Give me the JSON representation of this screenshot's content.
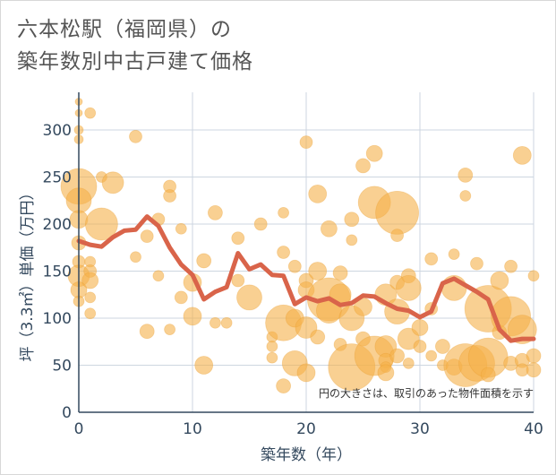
{
  "title": {
    "line1": "六本松駅（福岡県）の",
    "line2": "築年数別中古戸建て価格"
  },
  "chart_data": {
    "type": "scatter",
    "xlabel": "築年数（年）",
    "ylabel": "坪（3.3㎡）単価（万円）",
    "xlim": [
      0,
      40
    ],
    "ylim": [
      0,
      340
    ],
    "xticks": [
      0,
      10,
      20,
      30,
      40
    ],
    "yticks": [
      0,
      50,
      100,
      150,
      200,
      250,
      300
    ],
    "grid": true,
    "note": "円の大きさは、取引のあった物件面積を示す",
    "colors": {
      "bubble": "#f5b04a",
      "line": "#d9644a",
      "grid": "#cdd6e0",
      "axis": "#34495e"
    },
    "line": {
      "x": [
        0,
        1,
        2,
        3,
        4,
        5,
        6,
        7,
        8,
        9,
        10,
        11,
        12,
        13,
        14,
        15,
        16,
        17,
        18,
        19,
        20,
        21,
        22,
        23,
        24,
        25,
        26,
        27,
        28,
        29,
        30,
        31,
        32,
        33,
        34,
        35,
        36,
        37,
        38,
        39,
        40
      ],
      "y": [
        182,
        178,
        176,
        186,
        193,
        194,
        208,
        198,
        175,
        157,
        146,
        120,
        128,
        133,
        169,
        152,
        157,
        146,
        145,
        115,
        122,
        118,
        121,
        114,
        116,
        124,
        123,
        116,
        110,
        108,
        101,
        107,
        137,
        142,
        135,
        128,
        120,
        88,
        76,
        78,
        78
      ]
    },
    "bubbles": [
      {
        "x": 0,
        "y": 330,
        "s": 4
      },
      {
        "x": 0,
        "y": 318,
        "s": 4
      },
      {
        "x": 0,
        "y": 300,
        "s": 5
      },
      {
        "x": 0,
        "y": 290,
        "s": 5
      },
      {
        "x": 0,
        "y": 240,
        "s": 20
      },
      {
        "x": 0,
        "y": 225,
        "s": 14
      },
      {
        "x": 0,
        "y": 205,
        "s": 10
      },
      {
        "x": 0,
        "y": 180,
        "s": 8
      },
      {
        "x": 0,
        "y": 160,
        "s": 7
      },
      {
        "x": 0,
        "y": 145,
        "s": 12
      },
      {
        "x": 0,
        "y": 130,
        "s": 9
      },
      {
        "x": 0,
        "y": 118,
        "s": 6
      },
      {
        "x": 1,
        "y": 318,
        "s": 6
      },
      {
        "x": 1,
        "y": 160,
        "s": 6
      },
      {
        "x": 1,
        "y": 150,
        "s": 7
      },
      {
        "x": 1,
        "y": 140,
        "s": 9
      },
      {
        "x": 1,
        "y": 122,
        "s": 6
      },
      {
        "x": 1,
        "y": 105,
        "s": 6
      },
      {
        "x": 2,
        "y": 250,
        "s": 6
      },
      {
        "x": 2,
        "y": 200,
        "s": 18
      },
      {
        "x": 3,
        "y": 244,
        "s": 12
      },
      {
        "x": 5,
        "y": 293,
        "s": 7
      },
      {
        "x": 5,
        "y": 165,
        "s": 6
      },
      {
        "x": 6,
        "y": 187,
        "s": 7
      },
      {
        "x": 6,
        "y": 86,
        "s": 8
      },
      {
        "x": 7,
        "y": 205,
        "s": 7
      },
      {
        "x": 7,
        "y": 145,
        "s": 6
      },
      {
        "x": 8,
        "y": 240,
        "s": 7
      },
      {
        "x": 8,
        "y": 230,
        "s": 7
      },
      {
        "x": 8,
        "y": 88,
        "s": 6
      },
      {
        "x": 9,
        "y": 195,
        "s": 6
      },
      {
        "x": 9,
        "y": 122,
        "s": 7
      },
      {
        "x": 10,
        "y": 138,
        "s": 10
      },
      {
        "x": 10,
        "y": 102,
        "s": 10
      },
      {
        "x": 11,
        "y": 161,
        "s": 8
      },
      {
        "x": 11,
        "y": 50,
        "s": 10
      },
      {
        "x": 12,
        "y": 212,
        "s": 8
      },
      {
        "x": 12,
        "y": 95,
        "s": 6
      },
      {
        "x": 13,
        "y": 95,
        "s": 6
      },
      {
        "x": 14,
        "y": 185,
        "s": 7
      },
      {
        "x": 14,
        "y": 140,
        "s": 7
      },
      {
        "x": 15,
        "y": 122,
        "s": 14
      },
      {
        "x": 16,
        "y": 200,
        "s": 7
      },
      {
        "x": 17,
        "y": 80,
        "s": 6
      },
      {
        "x": 17,
        "y": 70,
        "s": 6
      },
      {
        "x": 17,
        "y": 58,
        "s": 6
      },
      {
        "x": 18,
        "y": 212,
        "s": 6
      },
      {
        "x": 18,
        "y": 170,
        "s": 7
      },
      {
        "x": 18,
        "y": 95,
        "s": 20
      },
      {
        "x": 18,
        "y": 28,
        "s": 8
      },
      {
        "x": 19,
        "y": 155,
        "s": 7
      },
      {
        "x": 19,
        "y": 100,
        "s": 10
      },
      {
        "x": 19,
        "y": 52,
        "s": 14
      },
      {
        "x": 20,
        "y": 287,
        "s": 7
      },
      {
        "x": 20,
        "y": 140,
        "s": 8
      },
      {
        "x": 20,
        "y": 130,
        "s": 9
      },
      {
        "x": 20,
        "y": 90,
        "s": 12
      },
      {
        "x": 20,
        "y": 42,
        "s": 10
      },
      {
        "x": 21,
        "y": 232,
        "s": 10
      },
      {
        "x": 21,
        "y": 150,
        "s": 10
      },
      {
        "x": 21,
        "y": 80,
        "s": 8
      },
      {
        "x": 22,
        "y": 195,
        "s": 9
      },
      {
        "x": 22,
        "y": 120,
        "s": 24
      },
      {
        "x": 22,
        "y": 108,
        "s": 14
      },
      {
        "x": 23,
        "y": 148,
        "s": 8
      },
      {
        "x": 23,
        "y": 125,
        "s": 12
      },
      {
        "x": 23,
        "y": 72,
        "s": 7
      },
      {
        "x": 24,
        "y": 205,
        "s": 8
      },
      {
        "x": 24,
        "y": 183,
        "s": 6
      },
      {
        "x": 24,
        "y": 100,
        "s": 14
      },
      {
        "x": 24,
        "y": 48,
        "s": 26
      },
      {
        "x": 25,
        "y": 262,
        "s": 8
      },
      {
        "x": 25,
        "y": 112,
        "s": 10
      },
      {
        "x": 25,
        "y": 78,
        "s": 8
      },
      {
        "x": 26,
        "y": 275,
        "s": 9
      },
      {
        "x": 26,
        "y": 223,
        "s": 18
      },
      {
        "x": 26,
        "y": 60,
        "s": 22
      },
      {
        "x": 27,
        "y": 125,
        "s": 12
      },
      {
        "x": 27,
        "y": 70,
        "s": 12
      },
      {
        "x": 27,
        "y": 55,
        "s": 8
      },
      {
        "x": 27,
        "y": 48,
        "s": 6
      },
      {
        "x": 27,
        "y": 42,
        "s": 9
      },
      {
        "x": 28,
        "y": 212,
        "s": 24
      },
      {
        "x": 28,
        "y": 188,
        "s": 7
      },
      {
        "x": 28,
        "y": 138,
        "s": 8
      },
      {
        "x": 28,
        "y": 107,
        "s": 14
      },
      {
        "x": 28,
        "y": 60,
        "s": 8
      },
      {
        "x": 29,
        "y": 145,
        "s": 8
      },
      {
        "x": 29,
        "y": 132,
        "s": 14
      },
      {
        "x": 29,
        "y": 78,
        "s": 12
      },
      {
        "x": 29,
        "y": 52,
        "s": 6
      },
      {
        "x": 30,
        "y": 90,
        "s": 9
      },
      {
        "x": 30,
        "y": 70,
        "s": 7
      },
      {
        "x": 31,
        "y": 163,
        "s": 7
      },
      {
        "x": 31,
        "y": 110,
        "s": 7
      },
      {
        "x": 31,
        "y": 60,
        "s": 6
      },
      {
        "x": 32,
        "y": 70,
        "s": 8
      },
      {
        "x": 32,
        "y": 50,
        "s": 6
      },
      {
        "x": 33,
        "y": 132,
        "s": 14
      },
      {
        "x": 33,
        "y": 168,
        "s": 6
      },
      {
        "x": 33,
        "y": 48,
        "s": 9
      },
      {
        "x": 34,
        "y": 252,
        "s": 8
      },
      {
        "x": 34,
        "y": 230,
        "s": 6
      },
      {
        "x": 34,
        "y": 50,
        "s": 24
      },
      {
        "x": 35,
        "y": 158,
        "s": 7
      },
      {
        "x": 35,
        "y": 52,
        "s": 20
      },
      {
        "x": 36,
        "y": 110,
        "s": 26
      },
      {
        "x": 36,
        "y": 58,
        "s": 22
      },
      {
        "x": 36,
        "y": 40,
        "s": 8
      },
      {
        "x": 37,
        "y": 140,
        "s": 10
      },
      {
        "x": 37,
        "y": 85,
        "s": 8
      },
      {
        "x": 38,
        "y": 155,
        "s": 7
      },
      {
        "x": 38,
        "y": 102,
        "s": 22
      },
      {
        "x": 38,
        "y": 52,
        "s": 8
      },
      {
        "x": 39,
        "y": 273,
        "s": 10
      },
      {
        "x": 39,
        "y": 88,
        "s": 16
      },
      {
        "x": 39,
        "y": 55,
        "s": 8
      },
      {
        "x": 39,
        "y": 45,
        "s": 7
      },
      {
        "x": 40,
        "y": 145,
        "s": 6
      },
      {
        "x": 40,
        "y": 60,
        "s": 8
      },
      {
        "x": 40,
        "y": 45,
        "s": 8
      }
    ]
  }
}
